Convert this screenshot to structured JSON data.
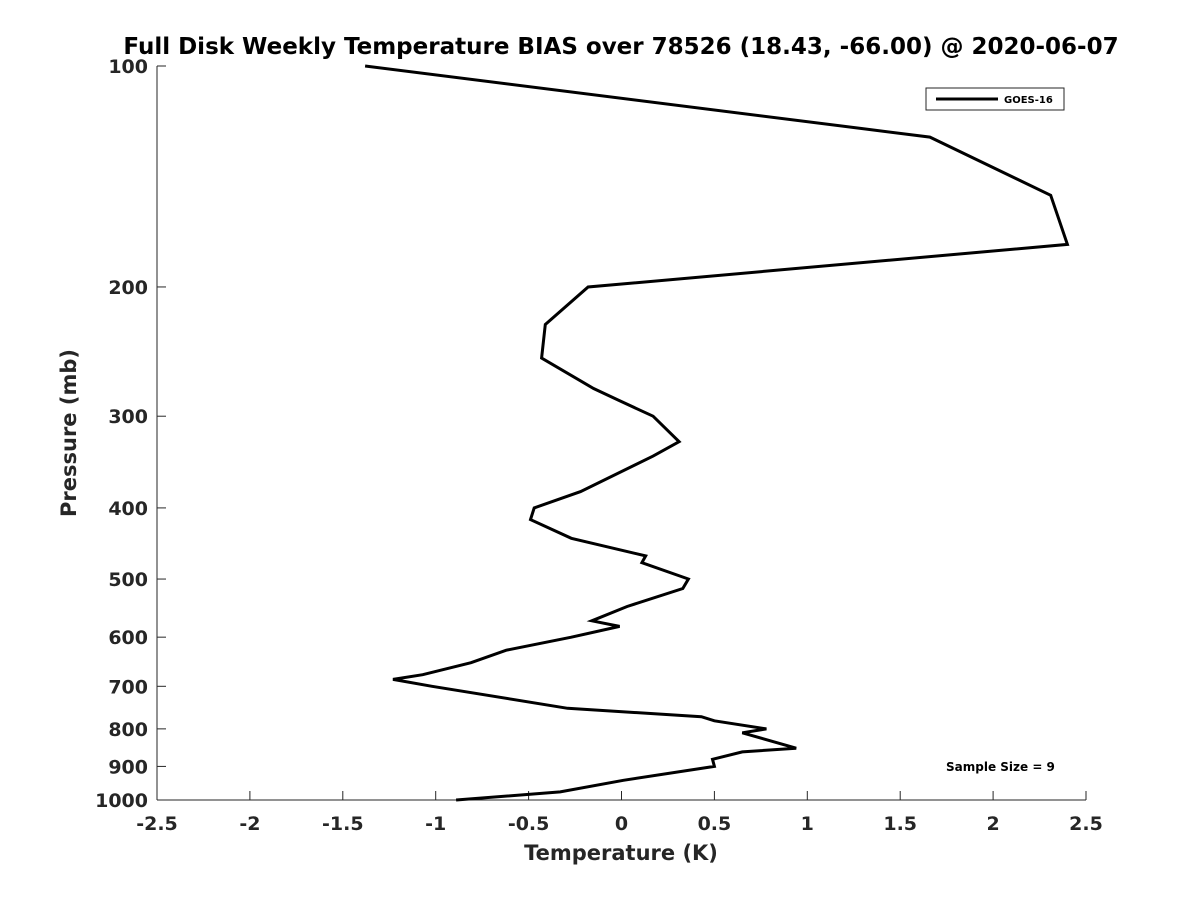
{
  "chart_data": {
    "type": "line",
    "title": "Full Disk Weekly Temperature BIAS over 78526 (18.43, -66.00) @ 2020-06-07",
    "xlabel": "Temperature (K)",
    "ylabel": "Pressure (mb)",
    "xlim": [
      -2.5,
      2.5
    ],
    "ylim": [
      100,
      1000
    ],
    "y_scale": "log",
    "y_reversed": true,
    "x_ticks": [
      "-2.5",
      "-2",
      "-1.5",
      "-1",
      "-0.5",
      "0",
      "0.5",
      "1",
      "1.5",
      "2",
      "2.5"
    ],
    "y_ticks": [
      "100",
      "200",
      "300",
      "400",
      "500",
      "600",
      "700",
      "800",
      "900",
      "1000"
    ],
    "grid": false,
    "legend": {
      "position": "top-right",
      "entries": [
        "GOES-16"
      ]
    },
    "annotation": "Sample Size = 9",
    "series": [
      {
        "name": "GOES-16",
        "color": "#000000",
        "points": [
          {
            "x": -1.38,
            "y": 100
          },
          {
            "x": 1.66,
            "y": 125
          },
          {
            "x": 2.31,
            "y": 150
          },
          {
            "x": 2.4,
            "y": 175
          },
          {
            "x": -0.18,
            "y": 200
          },
          {
            "x": -0.41,
            "y": 225
          },
          {
            "x": -0.43,
            "y": 250
          },
          {
            "x": -0.15,
            "y": 275
          },
          {
            "x": -0.02,
            "y": 285
          },
          {
            "x": 0.17,
            "y": 300
          },
          {
            "x": 0.31,
            "y": 325
          },
          {
            "x": 0.17,
            "y": 340
          },
          {
            "x": -0.22,
            "y": 380
          },
          {
            "x": -0.47,
            "y": 400
          },
          {
            "x": -0.49,
            "y": 415
          },
          {
            "x": -0.27,
            "y": 440
          },
          {
            "x": 0.13,
            "y": 465
          },
          {
            "x": 0.11,
            "y": 475
          },
          {
            "x": 0.36,
            "y": 500
          },
          {
            "x": 0.33,
            "y": 515
          },
          {
            "x": 0.03,
            "y": 545
          },
          {
            "x": -0.16,
            "y": 570
          },
          {
            "x": -0.01,
            "y": 580
          },
          {
            "x": -0.27,
            "y": 600
          },
          {
            "x": -0.62,
            "y": 625
          },
          {
            "x": -0.81,
            "y": 650
          },
          {
            "x": -1.07,
            "y": 675
          },
          {
            "x": -1.23,
            "y": 685
          },
          {
            "x": -1.02,
            "y": 700
          },
          {
            "x": -0.29,
            "y": 750
          },
          {
            "x": 0.43,
            "y": 770
          },
          {
            "x": 0.5,
            "y": 780
          },
          {
            "x": 0.78,
            "y": 800
          },
          {
            "x": 0.65,
            "y": 810
          },
          {
            "x": 0.94,
            "y": 850
          },
          {
            "x": 0.65,
            "y": 860
          },
          {
            "x": 0.49,
            "y": 880
          },
          {
            "x": 0.5,
            "y": 900
          },
          {
            "x": 0.01,
            "y": 940
          },
          {
            "x": -0.33,
            "y": 975
          },
          {
            "x": -0.89,
            "y": 1000
          }
        ]
      }
    ]
  }
}
